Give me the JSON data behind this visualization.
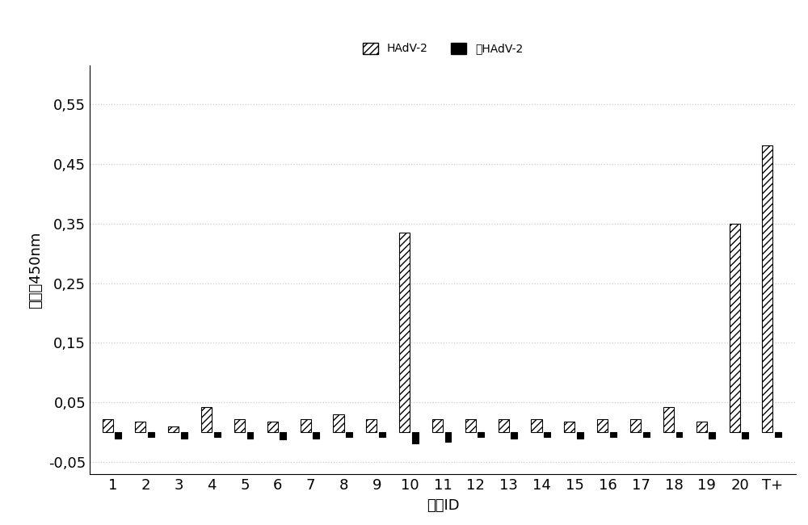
{
  "categories": [
    "1",
    "2",
    "3",
    "4",
    "5",
    "6",
    "7",
    "8",
    "9",
    "10",
    "11",
    "12",
    "13",
    "14",
    "15",
    "16",
    "17",
    "18",
    "19",
    "20",
    "T+"
  ],
  "hadv2": [
    0.022,
    0.018,
    0.01,
    0.042,
    0.022,
    0.018,
    0.022,
    0.03,
    0.022,
    0.335,
    0.022,
    0.022,
    0.022,
    0.022,
    0.018,
    0.022,
    0.022,
    0.042,
    0.018,
    0.35,
    0.48
  ],
  "no_hadv2": [
    -0.01,
    -0.008,
    -0.01,
    -0.008,
    -0.01,
    -0.012,
    -0.01,
    -0.008,
    -0.008,
    -0.018,
    -0.015,
    -0.008,
    -0.01,
    -0.008,
    -0.01,
    -0.008,
    -0.008,
    -0.008,
    -0.01,
    -0.01,
    -0.008
  ],
  "legend_hadv2": "HAdV-2",
  "legend_no_hadv2": "无HAdV-2",
  "ylabel": "吸光度450nm",
  "xlabel": "适体ID",
  "ylim_min": -0.07,
  "ylim_max": 0.615,
  "yticks": [
    -0.05,
    0.05,
    0.15,
    0.25,
    0.35,
    0.45,
    0.55
  ],
  "ytick_labels": [
    "-0,05",
    "0,05",
    "0,15",
    "0,25",
    "0,35",
    "0,45",
    "0,55"
  ],
  "bar_width": 0.32,
  "hatch_hadv2": "////",
  "color_hadv2": "white",
  "edgecolor_hadv2": "black",
  "color_no_hadv2": "black",
  "edgecolor_no_hadv2": "black",
  "background_color": "white",
  "grid_color": "#cccccc",
  "axis_fontsize": 13,
  "tick_fontsize": 13,
  "legend_fontsize": 13
}
